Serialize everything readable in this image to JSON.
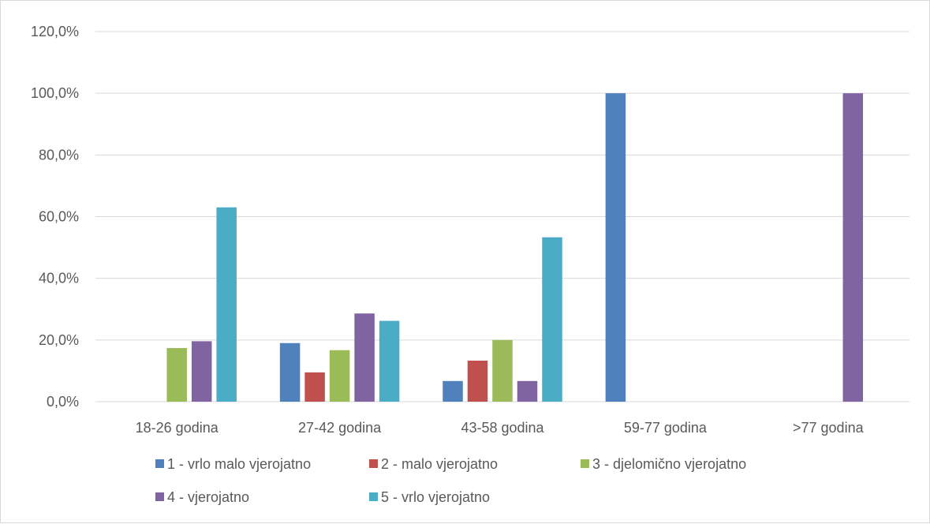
{
  "chart_data": {
    "type": "bar",
    "title": "",
    "xlabel": "",
    "ylabel": "",
    "ylim": [
      0,
      120
    ],
    "y_ticks": [
      "0,0%",
      "20,0%",
      "40,0%",
      "60,0%",
      "80,0%",
      "100,0%",
      "120,0%"
    ],
    "y_tick_values": [
      0,
      20,
      40,
      60,
      80,
      100,
      120
    ],
    "grid": true,
    "legend_position": "bottom",
    "categories": [
      "18-26 godina",
      "27-42 godina",
      "43-58 godina",
      "59-77 godina",
      ">77 godina"
    ],
    "series": [
      {
        "name": "1 - vrlo malo vjerojatno",
        "color": "#4f81bd",
        "values": [
          0,
          19.0,
          6.7,
          100,
          0
        ]
      },
      {
        "name": "2 - malo vjerojatno",
        "color": "#c0504d",
        "values": [
          0,
          9.5,
          13.3,
          0,
          0
        ]
      },
      {
        "name": "3 - djelomično vjerojatno",
        "color": "#9bbb59",
        "values": [
          17.4,
          16.7,
          20.0,
          0,
          0
        ]
      },
      {
        "name": "4 - vjerojatno",
        "color": "#8064a2",
        "values": [
          19.6,
          28.6,
          6.7,
          0,
          100
        ]
      },
      {
        "name": "5 - vrlo vjerojatno",
        "color": "#4bacc6",
        "values": [
          63.0,
          26.2,
          53.3,
          0,
          0
        ]
      }
    ]
  }
}
